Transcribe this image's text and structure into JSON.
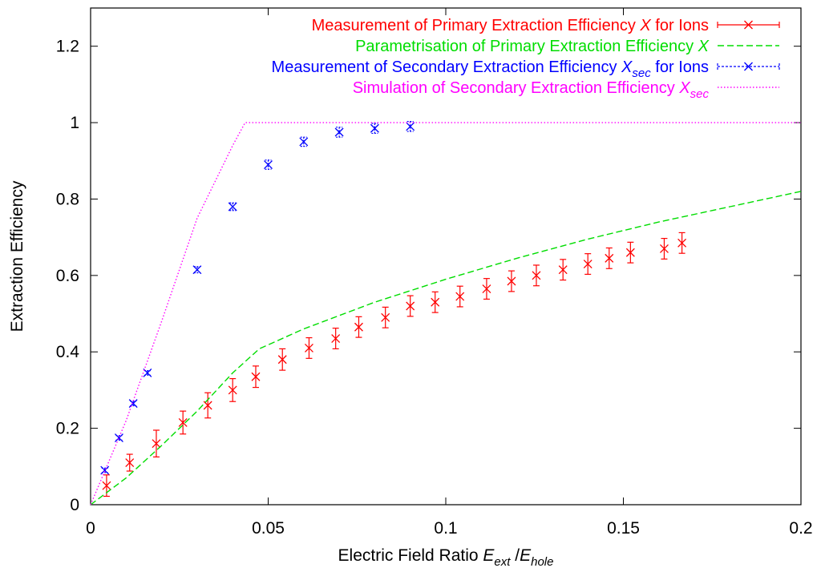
{
  "chart_data": {
    "type": "scatter",
    "title": "",
    "xlabel": {
      "main": "Electric Field Ratio ",
      "E1": "E",
      "sub1": "ext",
      "slash": " /",
      "E2": "E",
      "sub2": "hole"
    },
    "ylabel": "Extraction Efficiency",
    "xlim": [
      0,
      0.2
    ],
    "ylim": [
      0,
      1.3
    ],
    "x_ticks": [
      0,
      0.05,
      0.1,
      0.15,
      0.2
    ],
    "x_tick_labels": [
      "0",
      "0.05",
      "0.1",
      "0.15",
      "0.2"
    ],
    "y_ticks": [
      0,
      0.2,
      0.4,
      0.6,
      0.8,
      1,
      1.2
    ],
    "y_tick_labels": [
      "0",
      "0.2",
      "0.4",
      "0.6",
      "0.8",
      "1",
      "1.2"
    ],
    "grid": false,
    "legend_position": "top-right",
    "series": [
      {
        "legend": {
          "pre": "Measurement of Primary Extraction Efficiency ",
          "sym": "X",
          "sub": "",
          "post": " for Ions"
        },
        "style": "points-errorbars",
        "color": "#ff0000",
        "x": [
          0.0045,
          0.011,
          0.0185,
          0.026,
          0.033,
          0.04,
          0.0465,
          0.054,
          0.0615,
          0.069,
          0.0755,
          0.083,
          0.09,
          0.097,
          0.104,
          0.1115,
          0.1185,
          0.1255,
          0.133,
          0.14,
          0.146,
          0.152,
          0.1615,
          0.1665
        ],
        "y": [
          0.05,
          0.11,
          0.16,
          0.215,
          0.26,
          0.3,
          0.335,
          0.38,
          0.41,
          0.435,
          0.465,
          0.49,
          0.52,
          0.53,
          0.545,
          0.565,
          0.585,
          0.6,
          0.615,
          0.63,
          0.645,
          0.66,
          0.67,
          0.685
        ],
        "yerr": [
          0.028,
          0.022,
          0.035,
          0.03,
          0.033,
          0.03,
          0.028,
          0.028,
          0.027,
          0.027,
          0.027,
          0.027,
          0.027,
          0.027,
          0.027,
          0.027,
          0.027,
          0.027,
          0.027,
          0.027,
          0.027,
          0.027,
          0.027,
          0.027
        ]
      },
      {
        "legend": {
          "pre": "Parametrisation of Primary Extraction Efficiency ",
          "sym": "X",
          "sub": "",
          "post": ""
        },
        "style": "dashed-line",
        "color": "#00dd00",
        "x": [
          0,
          0.01,
          0.02,
          0.03,
          0.04,
          0.0475,
          0.06,
          0.08,
          0.1,
          0.12,
          0.14,
          0.16,
          0.18,
          0.2
        ],
        "y": [
          0,
          0.07,
          0.155,
          0.245,
          0.345,
          0.408,
          0.46,
          0.53,
          0.59,
          0.645,
          0.695,
          0.74,
          0.78,
          0.82
        ]
      },
      {
        "legend": {
          "pre": "Measurement of Secondary Extraction Efficiency ",
          "sym": "X",
          "sub": "sec",
          "post": " for Ions"
        },
        "style": "points-errorbars",
        "color": "#0000ff",
        "x": [
          0.004,
          0.008,
          0.012,
          0.016,
          0.03,
          0.04,
          0.05,
          0.06,
          0.07,
          0.08,
          0.09
        ],
        "y": [
          0.09,
          0.175,
          0.265,
          0.345,
          0.615,
          0.78,
          0.89,
          0.95,
          0.975,
          0.985,
          0.99
        ],
        "yerr": [
          0.006,
          0.006,
          0.006,
          0.006,
          0.008,
          0.01,
          0.012,
          0.012,
          0.013,
          0.013,
          0.013
        ]
      },
      {
        "legend": {
          "pre": "Simulation of Secondary Extraction Efficiency ",
          "sym": "X",
          "sub": "sec",
          "post": ""
        },
        "style": "dotted-line",
        "color": "#ff00ff",
        "x": [
          0,
          0.01,
          0.02,
          0.03,
          0.04,
          0.0435,
          0.1,
          0.2
        ],
        "y": [
          0,
          0.22,
          0.48,
          0.75,
          0.94,
          1.0,
          1.0,
          1.0
        ]
      }
    ]
  }
}
